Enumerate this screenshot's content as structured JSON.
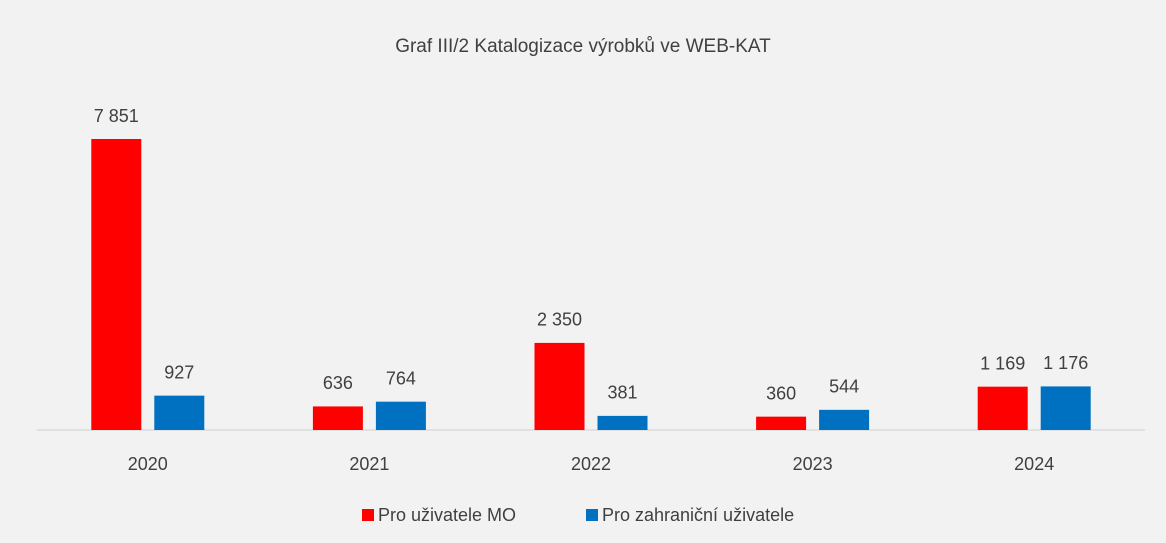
{
  "chart_data": {
    "type": "bar",
    "title": "Graf III/2 Katalogizace výrobků ve WEB-KAT",
    "categories": [
      "2020",
      "2021",
      "2022",
      "2023",
      "2024"
    ],
    "series": [
      {
        "name": "Pro uživatele MO",
        "color": "#ff0000",
        "values": [
          7851,
          636,
          2350,
          360,
          1169
        ],
        "value_labels": [
          "7 851",
          "636",
          "2 350",
          "360",
          "1 169"
        ]
      },
      {
        "name": "Pro zahraniční uživatele",
        "color": "#0070c0",
        "values": [
          927,
          764,
          381,
          544,
          1176
        ],
        "value_labels": [
          "927",
          "764",
          "381",
          "544",
          "1 176"
        ]
      }
    ],
    "legend": "bottom"
  }
}
